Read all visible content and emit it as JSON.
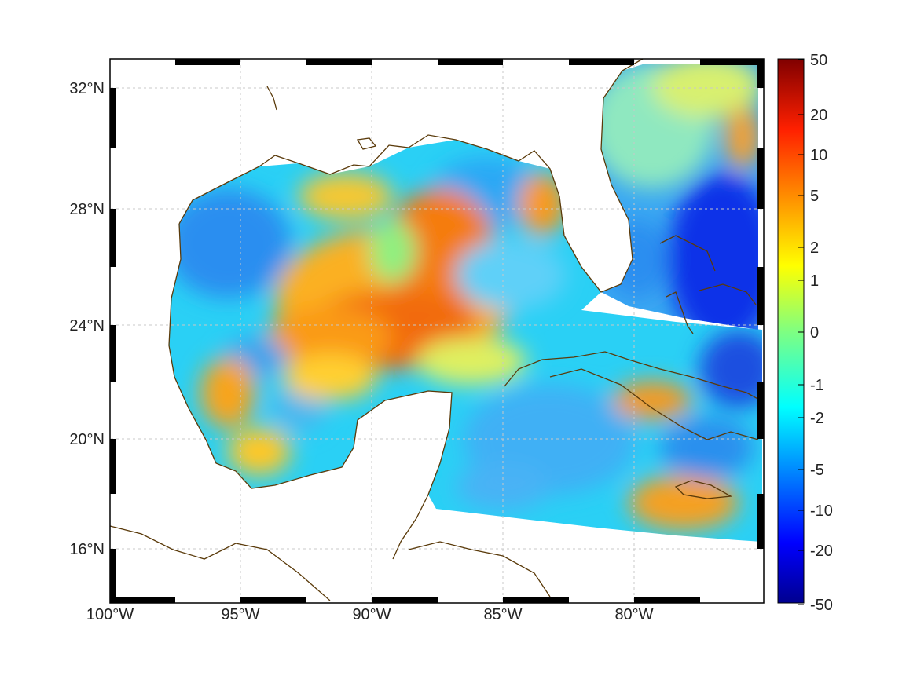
{
  "map": {
    "type": "gridded-field-map",
    "region": "Gulf of Mexico and western Caribbean",
    "lon_range": [
      -100,
      -75
    ],
    "lat_range": [
      14.2,
      33
    ],
    "x_ticks": [
      "100°W",
      "95°W",
      "90°W",
      "85°W",
      "80°W"
    ],
    "y_ticks": [
      "16°N",
      "20°N",
      "24°N",
      "28°N",
      "32°N"
    ],
    "grid": true,
    "coastline_color": "#5a3a0a"
  },
  "colorbar": {
    "labels": [
      "50",
      "20",
      "10",
      "5",
      "2",
      "1",
      "0",
      "-1",
      "-2",
      "-5",
      "-10",
      "-20",
      "-50"
    ],
    "colormap": "jet",
    "min_color": "#00008f",
    "max_color": "#800000"
  }
}
